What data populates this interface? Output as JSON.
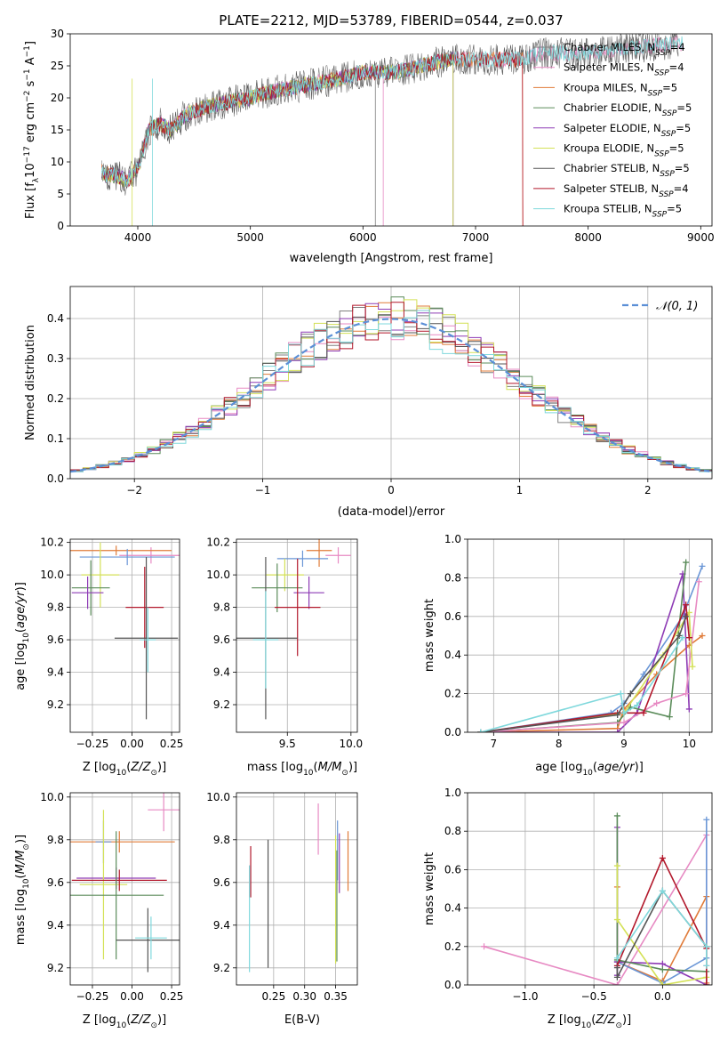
{
  "figure": {
    "title": "PLATE=2212, MJD=53789, FIBERID=0544, z=0.037"
  },
  "colors": [
    "#808080",
    "#e78ac3",
    "#e07b39",
    "#5b8c5a",
    "#8e3bb5",
    "#d4e157",
    "#555555",
    "#b2182b",
    "#7fd8dc"
  ],
  "chart_data": [
    {
      "id": "spectrum",
      "type": "line",
      "title": "PLATE=2212, MJD=53789, FIBERID=0544, z=0.037",
      "xlabel": "wavelength [Angstrom, rest frame]",
      "ylabel_parts": {
        "pre": "Flux [f",
        "sub": "λ",
        "mid": "10",
        "sup1": "−17",
        "post": " erg cm",
        "sup2": "−2",
        "s": " s",
        "sup3": "−1",
        "A": " A",
        "sup4": "−1",
        "close": "]"
      },
      "xlim": [
        3400,
        9100
      ],
      "ylim": [
        0,
        30
      ],
      "xticks": [
        4000,
        5000,
        6000,
        7000,
        8000,
        9000
      ],
      "yticks": [
        0,
        5,
        10,
        15,
        20,
        25,
        30
      ],
      "grid": false,
      "legend_position": "right",
      "continuum": {
        "x": [
          3650,
          3700,
          3800,
          3900,
          4000,
          4050,
          4100,
          4200,
          4300,
          4400,
          4500,
          4700,
          5000,
          5200,
          5500,
          5800,
          6000,
          6300,
          6500,
          6800,
          7000,
          7200,
          7400,
          7600,
          7800,
          8000,
          8200,
          8500,
          8800
        ],
        "y": [
          9,
          8,
          8,
          7,
          9,
          12,
          15,
          16,
          15,
          17,
          18,
          19,
          20,
          21,
          22,
          23,
          24,
          24,
          25,
          26,
          26,
          26,
          26,
          27,
          27,
          27,
          27.5,
          28,
          28.5
        ]
      },
      "series": [
        {
          "label_pre": "Chabrier MILES, N",
          "label_sub": "SSP",
          "label_post": "=4",
          "color": "#808080"
        },
        {
          "label_pre": "Salpeter MILES, N",
          "label_sub": "SSP",
          "label_post": "=4",
          "color": "#e78ac3"
        },
        {
          "label_pre": "Kroupa MILES, N",
          "label_sub": "SSP",
          "label_post": "=5",
          "color": "#e07b39"
        },
        {
          "label_pre": "Chabrier ELODIE, N",
          "label_sub": "SSP",
          "label_post": "=5",
          "color": "#5b8c5a"
        },
        {
          "label_pre": "Salpeter ELODIE, N",
          "label_sub": "SSP",
          "label_post": "=5",
          "color": "#8e3bb5"
        },
        {
          "label_pre": "Kroupa ELODIE, N",
          "label_sub": "SSP",
          "label_post": "=5",
          "color": "#d4e157"
        },
        {
          "label_pre": "Chabrier STELIB, N",
          "label_sub": "SSP",
          "label_post": "=5",
          "color": "#555555"
        },
        {
          "label_pre": "Salpeter STELIB, N",
          "label_sub": "SSP",
          "label_post": "=4",
          "color": "#b2182b"
        },
        {
          "label_pre": "Kroupa STELIB, N",
          "label_sub": "SSP",
          "label_post": "=5",
          "color": "#7fd8dc"
        }
      ]
    },
    {
      "id": "residuals",
      "type": "histogram",
      "xlabel": "(data-model)/error",
      "ylabel": "Normed distribution",
      "xlim": [
        -2.5,
        2.5
      ],
      "ylim": [
        0,
        0.48
      ],
      "xticks": [
        -2,
        -1,
        0,
        1,
        2
      ],
      "yticks": [
        0.0,
        0.1,
        0.2,
        0.3,
        0.4
      ],
      "grid": true,
      "legend_label": "𝒩(0, 1)",
      "legend_position": "top-right",
      "bin_width": 0.1
    },
    {
      "id": "age_vs_Z",
      "type": "errorbar",
      "xlabel_pre": "Z [log",
      "xlabel_sub": "10",
      "xlabel_post": "(Z/Z",
      "xlabel_sun": "⊙",
      "xlabel_close": ")]",
      "ylabel": "age  [log10(age/yr)]",
      "xlim": [
        -0.39,
        0.3
      ],
      "ylim": [
        9.03,
        10.22
      ],
      "xticks": [
        -0.25,
        0.0,
        0.25
      ],
      "yticks": [
        9.2,
        9.4,
        9.6,
        9.8,
        10.0,
        10.2
      ],
      "grid": true,
      "points": [
        {
          "x": 0.12,
          "y": 10.12,
          "xerr": 0.2,
          "yerr": 0.05,
          "color": "#e78ac3"
        },
        {
          "x": -0.1,
          "y": 10.15,
          "xerr": 0.35,
          "yerr": 0.03,
          "color": "#e07b39"
        },
        {
          "x": -0.03,
          "y": 10.11,
          "xerr": 0.3,
          "yerr": 0.05,
          "color": "#6a96d6"
        },
        {
          "x": -0.2,
          "y": 10.0,
          "xerr": 0.12,
          "yerr": 0.2,
          "color": "#d4e157"
        },
        {
          "x": -0.26,
          "y": 9.92,
          "xerr": 0.12,
          "yerr": 0.17,
          "color": "#5b8c5a"
        },
        {
          "x": -0.28,
          "y": 9.89,
          "xerr": 0.1,
          "yerr": 0.1,
          "color": "#8e3bb5"
        },
        {
          "x": 0.08,
          "y": 9.8,
          "xerr": 0.12,
          "yerr": 0.25,
          "color": "#b2182b"
        },
        {
          "x": 0.09,
          "y": 9.61,
          "xerr": 0.2,
          "yerr": 0.5,
          "color": "#555555"
        },
        {
          "x": 0.1,
          "y": 9.6,
          "xerr": 0.05,
          "yerr": 0.2,
          "color": "#7fd8dc"
        }
      ]
    },
    {
      "id": "age_vs_mass",
      "type": "errorbar",
      "xlabel": "mass [log10(M/M⊙)]",
      "xlim": [
        9.1,
        10.05
      ],
      "ylim": [
        9.03,
        10.22
      ],
      "xticks": [
        9.5,
        10.0
      ],
      "yticks": [
        9.2,
        9.4,
        9.6,
        9.8,
        10.0,
        10.2
      ],
      "grid": true,
      "points": [
        {
          "x": 9.9,
          "y": 10.12,
          "xerr": 0.1,
          "yerr": 0.05,
          "color": "#e78ac3"
        },
        {
          "x": 9.75,
          "y": 10.15,
          "xerr": 0.1,
          "yerr": 0.1,
          "color": "#e07b39"
        },
        {
          "x": 9.62,
          "y": 10.1,
          "xerr": 0.2,
          "yerr": 0.05,
          "color": "#6a96d6"
        },
        {
          "x": 9.48,
          "y": 10.0,
          "xerr": 0.15,
          "yerr": 0.1,
          "color": "#d4e157"
        },
        {
          "x": 9.42,
          "y": 9.92,
          "xerr": 0.2,
          "yerr": 0.15,
          "color": "#5b8c5a"
        },
        {
          "x": 9.67,
          "y": 9.89,
          "xerr": 0.12,
          "yerr": 0.1,
          "color": "#8e3bb5"
        },
        {
          "x": 9.58,
          "y": 9.8,
          "xerr": 0.18,
          "yerr": 0.3,
          "color": "#b2182b"
        },
        {
          "x": 9.33,
          "y": 9.61,
          "xerr": 0.25,
          "yerr": 0.5,
          "color": "#555555"
        },
        {
          "x": 9.33,
          "y": 9.6,
          "xerr": 0.1,
          "yerr": 0.3,
          "color": "#7fd8dc"
        }
      ]
    },
    {
      "id": "weight_vs_age",
      "type": "line",
      "xlabel": "age  [log10(age/yr)]",
      "ylabel": "mass weight",
      "xlim": [
        6.6,
        10.35
      ],
      "ylim": [
        0,
        1.0
      ],
      "xticks": [
        7,
        8,
        9,
        10
      ],
      "yticks": [
        0.0,
        0.2,
        0.4,
        0.6,
        0.8,
        1.0
      ],
      "grid": true,
      "series": [
        {
          "color": "#6a96d6",
          "x": [
            6.8,
            8.8,
            9.0,
            9.3,
            9.9,
            10.2
          ],
          "y": [
            0.0,
            0.1,
            0.15,
            0.3,
            0.6,
            0.86
          ]
        },
        {
          "color": "#e07b39",
          "x": [
            6.8,
            8.9,
            9.0,
            9.5,
            10.0,
            10.2
          ],
          "y": [
            0.0,
            0.02,
            0.12,
            0.3,
            0.45,
            0.5
          ]
        },
        {
          "color": "#8e3bb5",
          "x": [
            6.8,
            8.9,
            9.2,
            9.9,
            10.0
          ],
          "y": [
            0.0,
            0.0,
            0.1,
            0.82,
            0.12
          ]
        },
        {
          "color": "#5b8c5a",
          "x": [
            6.8,
            8.9,
            9.1,
            9.7,
            9.95
          ],
          "y": [
            0.0,
            0.05,
            0.13,
            0.08,
            0.88
          ]
        },
        {
          "color": "#e78ac3",
          "x": [
            6.8,
            9.0,
            9.5,
            9.95,
            10.15
          ],
          "y": [
            0.0,
            0.05,
            0.15,
            0.2,
            0.78
          ]
        },
        {
          "color": "#d4e157",
          "x": [
            6.8,
            9.0,
            9.6,
            10.0,
            10.05
          ],
          "y": [
            0.0,
            0.1,
            0.4,
            0.62,
            0.34
          ]
        },
        {
          "color": "#b2182b",
          "x": [
            6.8,
            8.9,
            9.3,
            9.95,
            10.0
          ],
          "y": [
            0.0,
            0.1,
            0.1,
            0.66,
            0.49
          ]
        },
        {
          "color": "#555555",
          "x": [
            6.8,
            8.9,
            9.1,
            9.85,
            9.95
          ],
          "y": [
            0.0,
            0.09,
            0.2,
            0.5,
            0.6
          ]
        },
        {
          "color": "#7fd8dc",
          "x": [
            6.8,
            8.95,
            9.0,
            9.2,
            9.9
          ],
          "y": [
            0.0,
            0.2,
            0.1,
            0.14,
            0.49
          ]
        }
      ]
    },
    {
      "id": "mass_vs_Z",
      "type": "errorbar",
      "xlabel": "Z [log10(Z/Z⊙)]",
      "ylabel": "mass [log10(M/M⊙)]",
      "xlim": [
        -0.39,
        0.3
      ],
      "ylim": [
        9.12,
        10.02
      ],
      "xticks": [
        -0.25,
        0.0,
        0.25
      ],
      "yticks": [
        9.2,
        9.4,
        9.6,
        9.8,
        10.0
      ],
      "grid": true,
      "points": [
        {
          "x": 0.2,
          "y": 9.94,
          "xerr": 0.1,
          "yerr": 0.1,
          "color": "#e78ac3"
        },
        {
          "x": -0.08,
          "y": 9.79,
          "xerr": 0.35,
          "yerr": 0.05,
          "color": "#e07b39"
        },
        {
          "x": -0.18,
          "y": 9.79,
          "xerr": 0.05,
          "yerr": 0.1,
          "color": "#6a96d6"
        },
        {
          "x": -0.1,
          "y": 9.62,
          "xerr": 0.25,
          "yerr": 0.05,
          "color": "#8e3bb5"
        },
        {
          "x": -0.18,
          "y": 9.59,
          "xerr": 0.15,
          "yerr": 0.35,
          "color": "#d4e157"
        },
        {
          "x": -0.08,
          "y": 9.61,
          "xerr": 0.3,
          "yerr": 0.05,
          "color": "#b2182b"
        },
        {
          "x": -0.1,
          "y": 9.54,
          "xerr": 0.3,
          "yerr": 0.3,
          "color": "#5b8c5a"
        },
        {
          "x": 0.1,
          "y": 9.33,
          "xerr": 0.2,
          "yerr": 0.15,
          "color": "#555555"
        },
        {
          "x": 0.12,
          "y": 9.34,
          "xerr": 0.1,
          "yerr": 0.1,
          "color": "#7fd8dc"
        }
      ]
    },
    {
      "id": "mass_vs_ebv",
      "type": "errorbar",
      "xlabel": "E(B-V)",
      "xlim": [
        0.19,
        0.385
      ],
      "ylim": [
        9.12,
        10.02
      ],
      "xticks": [
        0.25,
        0.3,
        0.35
      ],
      "yticks": [
        9.2,
        9.4,
        9.6,
        9.8,
        10.0
      ],
      "grid": true,
      "points": [
        {
          "x": 0.322,
          "y": 9.85,
          "xerr": 0.0,
          "yerr": 0.12,
          "color": "#e78ac3"
        },
        {
          "x": 0.37,
          "y": 9.7,
          "xerr": 0.0,
          "yerr": 0.14,
          "color": "#e07b39"
        },
        {
          "x": 0.353,
          "y": 9.75,
          "xerr": 0.0,
          "yerr": 0.14,
          "color": "#6a96d6"
        },
        {
          "x": 0.356,
          "y": 9.69,
          "xerr": 0.0,
          "yerr": 0.14,
          "color": "#8e3bb5"
        },
        {
          "x": 0.35,
          "y": 9.52,
          "xerr": 0.0,
          "yerr": 0.3,
          "color": "#d4e157"
        },
        {
          "x": 0.352,
          "y": 9.49,
          "xerr": 0.0,
          "yerr": 0.26,
          "color": "#5b8c5a"
        },
        {
          "x": 0.213,
          "y": 9.65,
          "xerr": 0.0,
          "yerr": 0.12,
          "color": "#b2182b"
        },
        {
          "x": 0.241,
          "y": 9.5,
          "xerr": 0.0,
          "yerr": 0.3,
          "color": "#555555"
        },
        {
          "x": 0.211,
          "y": 9.43,
          "xerr": 0.0,
          "yerr": 0.25,
          "color": "#7fd8dc"
        }
      ]
    },
    {
      "id": "weight_vs_Z",
      "type": "line",
      "xlabel": "Z [log10(Z/Z⊙)]",
      "ylabel": "mass weight",
      "xlim": [
        -1.42,
        0.36
      ],
      "ylim": [
        0,
        1.0
      ],
      "xticks": [
        -1.0,
        -0.5,
        0.0
      ],
      "yticks": [
        0.0,
        0.2,
        0.4,
        0.6,
        0.8,
        1.0
      ],
      "grid": true,
      "series": [
        {
          "color": "#e78ac3",
          "x": [
            -1.3,
            -0.33,
            0.32,
            0.32
          ],
          "y": [
            0.2,
            0.0,
            0.78,
            0.1
          ]
        },
        {
          "color": "#e07b39",
          "x": [
            -0.33,
            -0.33,
            0.0,
            0.32,
            0.32
          ],
          "y": [
            0.51,
            0.12,
            0.02,
            0.46,
            0.01
          ]
        },
        {
          "color": "#6a96d6",
          "x": [
            -0.33,
            0.0,
            0.32,
            0.32
          ],
          "y": [
            0.12,
            0.01,
            0.14,
            0.86
          ]
        },
        {
          "color": "#8e3bb5",
          "x": [
            -0.33,
            -0.33,
            -0.33,
            0.0,
            0.32
          ],
          "y": [
            0.82,
            0.05,
            0.12,
            0.11,
            0.0
          ]
        },
        {
          "color": "#5b8c5a",
          "x": [
            -0.33,
            -0.33,
            0.0,
            0.32,
            0.32
          ],
          "y": [
            0.88,
            0.13,
            0.08,
            0.07,
            0.0
          ]
        },
        {
          "color": "#d4e157",
          "x": [
            -0.33,
            -0.33,
            0.0,
            0.32
          ],
          "y": [
            0.62,
            0.34,
            0.0,
            0.04
          ]
        },
        {
          "color": "#b2182b",
          "x": [
            -0.33,
            0.0,
            0.32,
            0.32
          ],
          "y": [
            0.1,
            0.66,
            0.19,
            0.0
          ]
        },
        {
          "color": "#555555",
          "x": [
            -0.33,
            -0.33,
            0.0,
            0.32
          ],
          "y": [
            0.09,
            0.04,
            0.49,
            0.2
          ]
        },
        {
          "color": "#7fd8dc",
          "x": [
            -0.33,
            0.0,
            0.32,
            0.32
          ],
          "y": [
            0.14,
            0.49,
            0.2,
            0.1
          ]
        }
      ]
    }
  ]
}
